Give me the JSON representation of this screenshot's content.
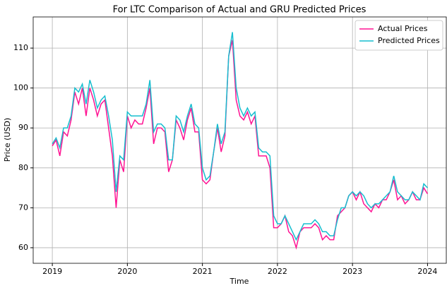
{
  "chart_data": {
    "type": "line",
    "title": "For LTC Comparison of Actual and GRU Predicted Prices",
    "x_label": "Time",
    "y_label": "Price (USD)",
    "x": [
      2019.0,
      2019.05,
      2019.1,
      2019.15,
      2019.2,
      2019.25,
      2019.3,
      2019.35,
      2019.4,
      2019.45,
      2019.5,
      2019.55,
      2019.6,
      2019.65,
      2019.7,
      2019.75,
      2019.8,
      2019.85,
      2019.9,
      2019.95,
      2020.0,
      2020.05,
      2020.1,
      2020.15,
      2020.2,
      2020.25,
      2020.3,
      2020.35,
      2020.4,
      2020.45,
      2020.5,
      2020.55,
      2020.6,
      2020.65,
      2020.7,
      2020.75,
      2020.8,
      2020.85,
      2020.9,
      2020.95,
      2021.0,
      2021.05,
      2021.1,
      2021.15,
      2021.2,
      2021.25,
      2021.3,
      2021.35,
      2021.4,
      2021.45,
      2021.5,
      2021.55,
      2021.6,
      2021.65,
      2021.7,
      2021.75,
      2021.8,
      2021.85,
      2021.9,
      2021.95,
      2022.0,
      2022.05,
      2022.1,
      2022.15,
      2022.2,
      2022.25,
      2022.3,
      2022.35,
      2022.4,
      2022.45,
      2022.5,
      2022.55,
      2022.6,
      2022.65,
      2022.7,
      2022.75,
      2022.8,
      2022.85,
      2022.9,
      2022.95,
      2023.0,
      2023.05,
      2023.1,
      2023.15,
      2023.2,
      2023.25,
      2023.3,
      2023.35,
      2023.4,
      2023.45,
      2023.5,
      2023.55,
      2023.6,
      2023.65,
      2023.7,
      2023.75,
      2023.8,
      2023.85,
      2023.9,
      2023.95,
      2024.0
    ],
    "series": [
      {
        "name": "Actual Prices",
        "color": "#ff1493",
        "values": [
          85.5,
          87,
          83,
          89,
          88,
          92,
          99,
          96,
          100,
          93,
          100,
          97,
          93,
          96,
          97,
          90,
          83,
          70,
          82,
          79,
          93,
          90,
          92,
          91,
          91,
          95,
          100,
          86,
          90,
          90,
          89,
          79,
          82,
          92,
          90,
          87,
          92,
          95,
          89,
          89,
          77,
          76,
          77,
          84,
          90,
          84,
          88,
          108,
          112,
          97,
          93,
          92,
          94,
          91,
          93,
          83,
          83,
          83,
          80,
          65,
          65,
          66,
          68,
          64,
          63,
          60,
          64,
          65,
          65,
          65,
          66,
          65,
          62,
          63,
          62,
          62,
          68,
          69,
          70,
          73,
          74,
          72,
          74,
          71,
          70,
          69,
          71,
          70,
          72,
          72,
          74,
          77,
          72,
          73,
          71,
          72,
          74,
          72,
          72,
          75,
          73.5
        ]
      },
      {
        "name": "Predicted Prices",
        "color": "#17becf",
        "values": [
          86,
          87.5,
          85,
          90,
          90,
          93,
          100,
          99,
          101,
          96,
          102,
          99,
          95,
          97,
          98,
          93,
          87,
          74,
          83,
          82,
          94,
          93,
          93,
          93,
          93,
          96,
          102,
          89,
          91,
          91,
          90,
          82,
          82,
          93,
          92,
          89,
          93,
          96,
          91,
          90,
          80,
          77,
          78,
          84,
          91,
          86,
          89,
          108,
          114,
          100,
          95,
          93,
          95,
          93,
          94,
          85,
          84,
          84,
          83,
          68,
          66,
          66,
          68,
          66,
          64,
          62,
          64,
          66,
          66,
          66,
          67,
          66,
          64,
          64,
          63,
          63,
          67,
          70,
          70,
          73,
          74,
          73,
          74,
          73,
          71,
          70,
          71,
          71,
          72,
          73,
          74,
          78,
          74,
          73,
          72,
          72,
          74,
          73,
          72,
          76,
          75
        ]
      }
    ],
    "xlim": [
      2018.745,
      2024.25
    ],
    "xticks": [
      2019,
      2020,
      2021,
      2022,
      2023,
      2024
    ],
    "ylim": [
      56.1,
      117.8
    ],
    "yticks": [
      60,
      70,
      80,
      90,
      100,
      110
    ],
    "grid": true,
    "legend": "upper-right"
  }
}
